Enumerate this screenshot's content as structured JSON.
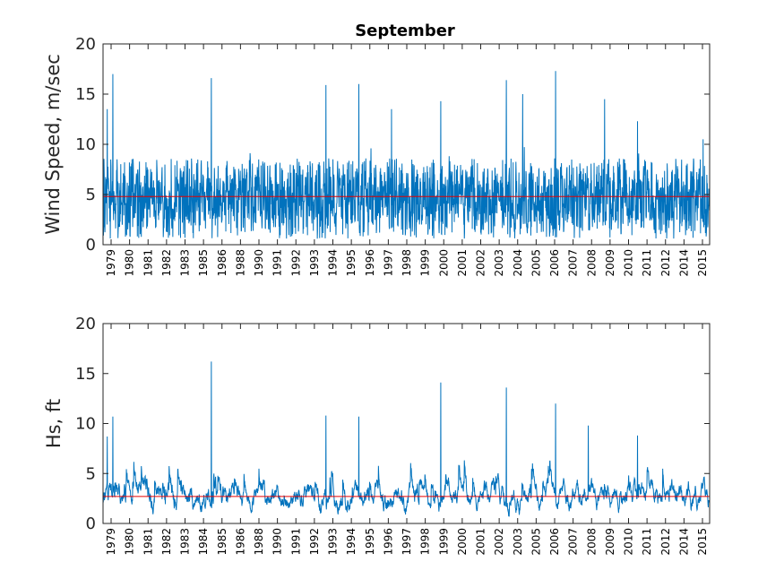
{
  "figure_title": "September",
  "colors": {
    "series": "#0072BD",
    "mean": "#e60000",
    "axes": "#262626"
  },
  "chart_data": [
    {
      "type": "line",
      "title": "September",
      "ylabel": "Wind Speed, m/sec",
      "xlabel": "",
      "ylim": [
        0,
        20
      ],
      "yticks": [
        0,
        5,
        10,
        15,
        20
      ],
      "x_tick_labels": [
        "1979",
        "1980",
        "1981",
        "1982",
        "1983",
        "1985",
        "1986",
        "1988",
        "1990",
        "1991",
        "1992",
        "1993",
        "1994",
        "1995",
        "1996",
        "1997",
        "1998",
        "1999",
        "2000",
        "2001",
        "2002",
        "2003",
        "2004",
        "2005",
        "2006",
        "2007",
        "2008",
        "2009",
        "2010",
        "2011",
        "2012",
        "2014",
        "2015"
      ],
      "series": [
        {
          "values_description_free": true,
          "baseline": 4.6,
          "range": [
            0.2,
            17.3
          ],
          "peaks": [
            {
              "year": "1979",
              "value": 17.0
            },
            {
              "year": "1979",
              "value": 13.5
            },
            {
              "year": "1985",
              "value": 16.6
            },
            {
              "year": "1992",
              "value": 15.9
            },
            {
              "year": "1994",
              "value": 16.0
            },
            {
              "year": "1996",
              "value": 13.5
            },
            {
              "year": "1999",
              "value": 14.3
            },
            {
              "year": "2003",
              "value": 16.4
            },
            {
              "year": "2004",
              "value": 15.0
            },
            {
              "year": "2006",
              "value": 17.3
            },
            {
              "year": "2009",
              "value": 14.5
            },
            {
              "year": "2011",
              "value": 12.3
            },
            {
              "year": "2015",
              "value": 10.5
            }
          ]
        },
        {
          "mean": 4.8
        }
      ]
    },
    {
      "type": "line",
      "title": "",
      "ylabel": "Hs, ft",
      "xlabel": "",
      "ylim": [
        0,
        20
      ],
      "yticks": [
        0,
        5,
        10,
        15,
        20
      ],
      "x_tick_labels": [
        "1979",
        "1980",
        "1981",
        "1982",
        "1983",
        "1984",
        "1985",
        "1986",
        "1988",
        "1990",
        "1991",
        "1992",
        "1993",
        "1994",
        "1995",
        "1996",
        "1997",
        "1998",
        "1999",
        "2000",
        "2001",
        "2002",
        "2003",
        "2005",
        "2006",
        "2007",
        "2008",
        "2009",
        "2010",
        "2011",
        "2012",
        "2014",
        "2015"
      ],
      "series": [
        {
          "values_description_free": true,
          "baseline": 2.6,
          "range": [
            0.1,
            16.2
          ],
          "peaks": [
            {
              "year": "1979",
              "value": 10.7
            },
            {
              "year": "1979",
              "value": 8.7
            },
            {
              "year": "1985",
              "value": 16.2
            },
            {
              "year": "1992",
              "value": 10.8
            },
            {
              "year": "1994",
              "value": 10.7
            },
            {
              "year": "1999",
              "value": 14.1
            },
            {
              "year": "2003",
              "value": 13.6
            },
            {
              "year": "2006",
              "value": 12.0
            },
            {
              "year": "2008",
              "value": 9.8
            },
            {
              "year": "2011",
              "value": 8.8
            }
          ]
        },
        {
          "mean": 2.7
        }
      ]
    }
  ]
}
